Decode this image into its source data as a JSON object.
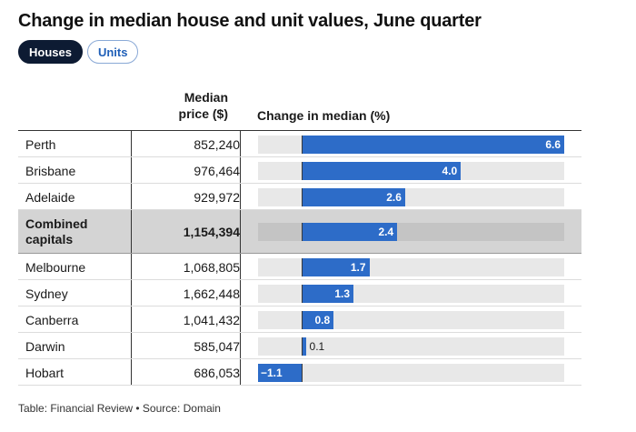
{
  "title": "Change in median house and unit values, June quarter",
  "toggles": [
    {
      "label": "Houses",
      "active": true
    },
    {
      "label": "Units",
      "active": false
    }
  ],
  "headers": {
    "city": "",
    "price_line1": "Median",
    "price_line2": "price ($)",
    "change": "Change in median (%)"
  },
  "colors": {
    "bar": "#2d6cc8",
    "track": "#e8e8e8",
    "highlight_row": "#d4d4d4",
    "active_toggle": "#0d1b33"
  },
  "chart_data": {
    "type": "bar",
    "orientation": "horizontal",
    "title": "Change in median house and unit values, June quarter",
    "xlabel": "Change in median (%)",
    "xlim": [
      -1.1,
      6.6
    ],
    "categories": [
      "Perth",
      "Brisbane",
      "Adelaide",
      "Combined capitals",
      "Melbourne",
      "Sydney",
      "Canberra",
      "Darwin",
      "Hobart"
    ],
    "rows": [
      {
        "city": "Perth",
        "price": "852,240",
        "change": 6.6,
        "change_label": "6.6",
        "highlight": false
      },
      {
        "city": "Brisbane",
        "price": "976,464",
        "change": 4.0,
        "change_label": "4.0",
        "highlight": false
      },
      {
        "city": "Adelaide",
        "price": "929,972",
        "change": 2.6,
        "change_label": "2.6",
        "highlight": false
      },
      {
        "city": "Combined capitals",
        "price": "1,154,394",
        "change": 2.4,
        "change_label": "2.4",
        "highlight": true
      },
      {
        "city": "Melbourne",
        "price": "1,068,805",
        "change": 1.7,
        "change_label": "1.7",
        "highlight": false
      },
      {
        "city": "Sydney",
        "price": "1,662,448",
        "change": 1.3,
        "change_label": "1.3",
        "highlight": false
      },
      {
        "city": "Canberra",
        "price": "1,041,432",
        "change": 0.8,
        "change_label": "0.8",
        "highlight": false
      },
      {
        "city": "Darwin",
        "price": "585,047",
        "change": 0.1,
        "change_label": "0.1",
        "highlight": false
      },
      {
        "city": "Hobart",
        "price": "686,053",
        "change": -1.1,
        "change_label": "−1.1",
        "highlight": false
      }
    ]
  },
  "footer": "Table: Financial Review • Source: Domain"
}
